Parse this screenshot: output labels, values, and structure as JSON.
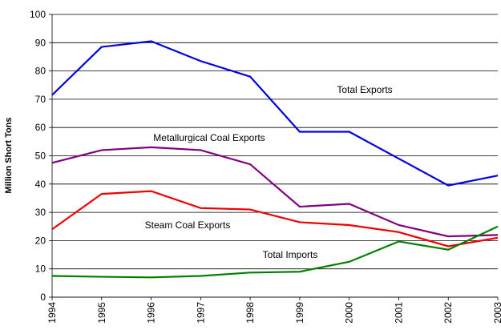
{
  "chart_data": {
    "type": "line",
    "y_label": "Million Short Tons",
    "categories": [
      "1994",
      "1995",
      "1996",
      "1997",
      "1998",
      "1999",
      "2000",
      "2001",
      "2002",
      "2003"
    ],
    "ylim": [
      0,
      100
    ],
    "yticks": [
      0,
      10,
      20,
      30,
      40,
      50,
      60,
      70,
      80,
      90,
      100
    ],
    "grid": true,
    "series": [
      {
        "name": "Total Exports",
        "color": "#0000e0",
        "values": [
          71.5,
          88.5,
          90.5,
          83.5,
          78,
          58.5,
          58.5,
          49,
          39.5,
          43
        ]
      },
      {
        "name": "Metallurgical Coal Exports",
        "color": "#800080",
        "values": [
          47.5,
          52,
          53,
          52,
          47,
          32,
          33,
          25.5,
          21.5,
          22
        ]
      },
      {
        "name": "Steam Coal Exports",
        "color": "#ee0000",
        "values": [
          24,
          36.5,
          37.5,
          31.5,
          31,
          26.5,
          25.5,
          23,
          18,
          21
        ]
      },
      {
        "name": "Total Imports",
        "color": "#008000",
        "values": [
          7.5,
          7.2,
          7,
          7.5,
          8.7,
          9,
          12.5,
          19.7,
          16.8,
          25
        ]
      }
    ]
  }
}
